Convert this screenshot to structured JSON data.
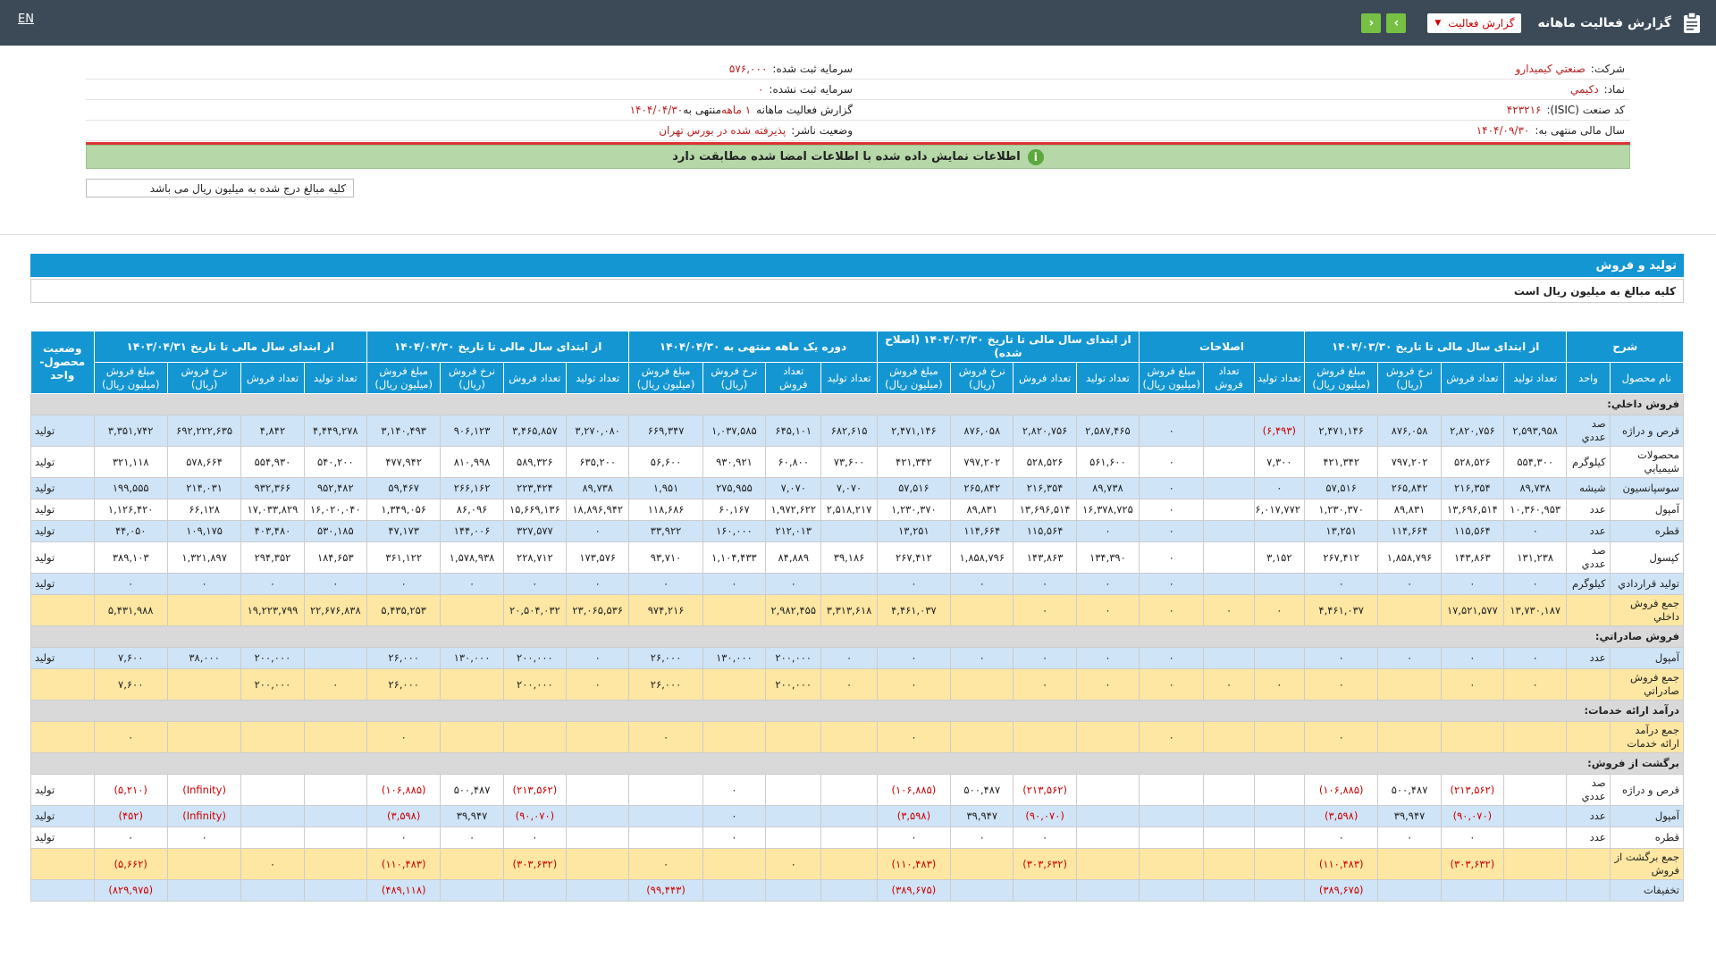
{
  "header": {
    "title": "گزارش فعالیت ماهانه",
    "report_type": "گزارش فعالیت",
    "lang": "EN",
    "next": "›",
    "prev": "‹"
  },
  "info": {
    "company_label": "شرکت:",
    "company_value": "صنعتي كيميدارو",
    "capital_label": "سرمایه ثبت شده:",
    "capital_value": "۵۷۶,۰۰۰",
    "symbol_label": "نماد:",
    "symbol_value": "دكيمي",
    "unreg_capital_label": "سرمایه ثبت نشده:",
    "unreg_capital_value": "۰",
    "isic_label": "کد صنعت (ISIC):",
    "isic_value": "۴۲۳۲۱۶",
    "period_label": "گزارش فعالیت ماهانه",
    "period_value": "۱ ماهه",
    "period_end_label": "منتهی به",
    "period_end_value": "۱۴۰۴/۰۴/۳۰",
    "fy_label": "سال مالی منتهی به:",
    "fy_value": "۱۴۰۴/۰۹/۳۰",
    "status_label": "وضعیت ناشر:",
    "status_value": "پذیرفته شده در بورس تهران",
    "ok_message": "اطلاعات نمایش داده شده با اطلاعات امضا شده مطابقت دارد",
    "unit_note": "کلیه مبالغ درج شده به میلیون ریال می باشد"
  },
  "section": {
    "title": "تولید و فروش",
    "subtitle": "کلیه مبالغ به میلیون ریال است"
  },
  "table": {
    "groups": [
      "شرح",
      "از ابتدای سال مالی تا تاریخ ۱۴۰۴/۰۳/۳۰",
      "اصلاحات",
      "از ابتدای سال مالی تا تاریخ ۱۴۰۴/۰۳/۳۰ (اصلاح شده)",
      "دوره یک ماهه منتهی به ۱۴۰۴/۰۴/۳۰",
      "از ابتدای سال مالی تا تاریخ ۱۴۰۴/۰۴/۳۰",
      "از ابتدای سال مالی تا تاریخ ۱۴۰۳/۰۴/۳۱",
      "وضعیت محصول-واحد"
    ],
    "cols": [
      "نام محصول",
      "واحد",
      "تعداد تولید",
      "تعداد فروش",
      "نرخ فروش (ریال)",
      "مبلغ فروش (میلیون ریال)",
      "تعداد تولید",
      "تعداد فروش",
      "مبلغ فروش (میلیون ریال)",
      "تعداد تولید",
      "تعداد فروش",
      "نرخ فروش (ریال)",
      "مبلغ فروش (میلیون ریال)",
      "تعداد تولید",
      "تعداد فروش",
      "نرخ فروش (ریال)",
      "مبلغ فروش (میلیون ریال)",
      "تعداد تولید",
      "تعداد فروش",
      "نرخ فروش (ریال)",
      "مبلغ فروش (میلیون ریال)",
      "تعداد تولید",
      "تعداد فروش",
      "نرخ فروش (ریال)",
      "مبلغ فروش (میلیون ریال)"
    ],
    "rows": [
      {
        "type": "sect",
        "c": [
          "فروش داخلي:"
        ]
      },
      {
        "type": "blue",
        "c": [
          "قرص و دراژه",
          "صد عددي",
          "۲,۵۹۳,۹۵۸",
          "۲,۸۲۰,۷۵۶",
          "۸۷۶,۰۵۸",
          "۲,۴۷۱,۱۴۶",
          "(۶,۴۹۳)",
          "",
          "۰",
          "۲,۵۸۷,۴۶۵",
          "۲,۸۲۰,۷۵۶",
          "۸۷۶,۰۵۸",
          "۲,۴۷۱,۱۴۶",
          "۶۸۲,۶۱۵",
          "۶۴۵,۱۰۱",
          "۱,۰۳۷,۵۸۵",
          "۶۶۹,۳۴۷",
          "۳,۲۷۰,۰۸۰",
          "۳,۴۶۵,۸۵۷",
          "۹۰۶,۱۲۳",
          "۳,۱۴۰,۴۹۳",
          "۴,۴۴۹,۲۷۸",
          "۴,۸۴۲",
          "۶۹۲,۲۲۲,۶۳۵",
          "۳,۳۵۱,۷۴۲",
          "تولید"
        ]
      },
      {
        "type": "white",
        "c": [
          "محصولات شيميايي",
          "کیلوگرم",
          "۵۵۴,۳۰۰",
          "۵۲۸,۵۲۶",
          "۷۹۷,۲۰۲",
          "۴۲۱,۳۴۲",
          "۷,۳۰۰",
          "",
          "۰",
          "۵۶۱,۶۰۰",
          "۵۲۸,۵۲۶",
          "۷۹۷,۲۰۲",
          "۴۲۱,۳۴۲",
          "۷۳,۶۰۰",
          "۶۰,۸۰۰",
          "۹۳۰,۹۲۱",
          "۵۶,۶۰۰",
          "۶۳۵,۲۰۰",
          "۵۸۹,۳۲۶",
          "۸۱۰,۹۹۸",
          "۴۷۷,۹۴۲",
          "۵۴۰,۲۰۰",
          "۵۵۴,۹۳۰",
          "۵۷۸,۶۶۴",
          "۳۲۱,۱۱۸",
          "تولید"
        ]
      },
      {
        "type": "blue",
        "c": [
          "سوسپانسيون",
          "شيشه",
          "۸۹,۷۳۸",
          "۲۱۶,۳۵۴",
          "۲۶۵,۸۴۲",
          "۵۷,۵۱۶",
          "۰",
          "",
          "۰",
          "۸۹,۷۳۸",
          "۲۱۶,۳۵۴",
          "۲۶۵,۸۴۲",
          "۵۷,۵۱۶",
          "۷,۰۷۰",
          "۷,۰۷۰",
          "۲۷۵,۹۵۵",
          "۱,۹۵۱",
          "۸۹,۷۳۸",
          "۲۲۳,۴۲۴",
          "۲۶۶,۱۶۲",
          "۵۹,۴۶۷",
          "۹۵۲,۴۸۲",
          "۹۳۲,۳۶۶",
          "۲۱۴,۰۳۱",
          "۱۹۹,۵۵۵",
          "تولید"
        ]
      },
      {
        "type": "white",
        "c": [
          "آمپول",
          "عدد",
          "۱۰,۳۶۰,۹۵۳",
          "۱۳,۶۹۶,۵۱۴",
          "۸۹,۸۳۱",
          "۱,۲۳۰,۳۷۰",
          "۶,۰۱۷,۷۷۲",
          "",
          "۰",
          "۱۶,۳۷۸,۷۲۵",
          "۱۳,۶۹۶,۵۱۴",
          "۸۹,۸۳۱",
          "۱,۲۳۰,۳۷۰",
          "۲,۵۱۸,۲۱۷",
          "۱,۹۷۲,۶۲۲",
          "۶۰,۱۶۷",
          "۱۱۸,۶۸۶",
          "۱۸,۸۹۶,۹۴۲",
          "۱۵,۶۶۹,۱۳۶",
          "۸۶,۰۹۶",
          "۱,۳۴۹,۰۵۶",
          "۱۶,۰۲۰,۰۴۰",
          "۱۷,۰۳۳,۸۲۹",
          "۶۶,۱۲۸",
          "۱,۱۲۶,۴۲۰",
          "تولید"
        ]
      },
      {
        "type": "blue",
        "c": [
          "قطره",
          "عدد",
          "۰",
          "۱۱۵,۵۶۴",
          "۱۱۴,۶۶۴",
          "۱۳,۲۵۱",
          "",
          "",
          "۰",
          "۰",
          "۱۱۵,۵۶۴",
          "۱۱۴,۶۶۴",
          "۱۳,۲۵۱",
          "",
          "۲۱۲,۰۱۳",
          "۱۶۰,۰۰۰",
          "۳۳,۹۲۲",
          "۰",
          "۳۲۷,۵۷۷",
          "۱۴۴,۰۰۶",
          "۴۷,۱۷۳",
          "۵۳۰,۱۸۵",
          "۴۰۳,۴۸۰",
          "۱۰۹,۱۷۵",
          "۴۴,۰۵۰",
          "تولید"
        ]
      },
      {
        "type": "white",
        "c": [
          "كپسول",
          "صد عددي",
          "۱۳۱,۲۳۸",
          "۱۴۳,۸۶۳",
          "۱,۸۵۸,۷۹۶",
          "۲۶۷,۴۱۲",
          "۳,۱۵۲",
          "",
          "۰",
          "۱۳۴,۳۹۰",
          "۱۴۳,۸۶۳",
          "۱,۸۵۸,۷۹۶",
          "۲۶۷,۴۱۲",
          "۳۹,۱۸۶",
          "۸۴,۸۸۹",
          "۱,۱۰۴,۴۳۳",
          "۹۳,۷۱۰",
          "۱۷۳,۵۷۶",
          "۲۲۸,۷۱۲",
          "۱,۵۷۸,۹۳۸",
          "۳۶۱,۱۲۲",
          "۱۸۴,۶۵۳",
          "۲۹۴,۳۵۲",
          "۱,۳۲۱,۸۹۷",
          "۳۸۹,۱۰۳",
          "تولید"
        ]
      },
      {
        "type": "blue",
        "c": [
          "توليد قراردادي",
          "کیلوگرم",
          "۰",
          "۰",
          "۰",
          "۰",
          "",
          "",
          "۰",
          "۰",
          "۰",
          "۰",
          "۰",
          "",
          "۰",
          "۰",
          "۰",
          "۰",
          "۰",
          "۰",
          "۰",
          "۰",
          "۰",
          "۰",
          "۰",
          "تولید"
        ]
      },
      {
        "type": "total",
        "c": [
          "جمع فروش داخلي",
          "",
          "۱۳,۷۳۰,۱۸۷",
          "۱۷,۵۲۱,۵۷۷",
          "",
          "۴,۴۶۱,۰۳۷",
          "۰",
          "۰",
          "۰",
          "۰",
          "۰",
          "",
          "۴,۴۶۱,۰۳۷",
          "۳,۳۱۳,۶۱۸",
          "۲,۹۸۲,۴۵۵",
          "",
          "۹۷۴,۲۱۶",
          "۲۳,۰۶۵,۵۳۶",
          "۲۰,۵۰۴,۰۳۲",
          "",
          "۵,۴۳۵,۲۵۳",
          "۲۲,۶۷۶,۸۳۸",
          "۱۹,۲۲۳,۷۹۹",
          "",
          "۵,۴۳۱,۹۸۸",
          ""
        ]
      },
      {
        "type": "sect",
        "c": [
          "فروش صادراتي:"
        ]
      },
      {
        "type": "blue",
        "c": [
          "آمپول",
          "عدد",
          "۰",
          "۰",
          "۰",
          "۰",
          "",
          "",
          "۰",
          "۰",
          "۰",
          "۰",
          "۰",
          "۰",
          "۲۰۰,۰۰۰",
          "۱۳۰,۰۰۰",
          "۲۶,۰۰۰",
          "۰",
          "۲۰۰,۰۰۰",
          "۱۳۰,۰۰۰",
          "۲۶,۰۰۰",
          "",
          "۲۰۰,۰۰۰",
          "۳۸,۰۰۰",
          "۷,۶۰۰",
          "تولید"
        ]
      },
      {
        "type": "total",
        "c": [
          "جمع فروش صادراتي",
          "",
          "۰",
          "۰",
          "",
          "۰",
          "۰",
          "۰",
          "۰",
          "۰",
          "۰",
          "",
          "۰",
          "۰",
          "۲۰۰,۰۰۰",
          "",
          "۲۶,۰۰۰",
          "۰",
          "۲۰۰,۰۰۰",
          "",
          "۲۶,۰۰۰",
          "۰",
          "۲۰۰,۰۰۰",
          "",
          "۷,۶۰۰",
          ""
        ]
      },
      {
        "type": "sect",
        "c": [
          "درآمد ارائه خدمات:"
        ]
      },
      {
        "type": "total",
        "c": [
          "جمع درآمد ارائه خدمات",
          "",
          "",
          "",
          "",
          "۰",
          "",
          "",
          "۰",
          "",
          "",
          "",
          "۰",
          "",
          "",
          "",
          "۰",
          "",
          "",
          "",
          "۰",
          "",
          "",
          "",
          "۰",
          ""
        ]
      },
      {
        "type": "sect",
        "c": [
          "برگشت از فروش:"
        ]
      },
      {
        "type": "white",
        "c": [
          "قرص و دراژه",
          "صد عددي",
          "",
          "(۲۱۳,۵۶۲)",
          "۵۰۰,۴۸۷",
          "(۱۰۶,۸۸۵)",
          "",
          "",
          "",
          "",
          "(۲۱۳,۵۶۲)",
          "۵۰۰,۴۸۷",
          "(۱۰۶,۸۸۵)",
          "",
          "",
          "۰",
          "",
          "",
          "(۲۱۳,۵۶۲)",
          "۵۰۰,۴۸۷",
          "(۱۰۶,۸۸۵)",
          "",
          "",
          "(Infinity)",
          "(۵,۲۱۰)",
          "تولید"
        ]
      },
      {
        "type": "blue",
        "c": [
          "آمپول",
          "عدد",
          "",
          "(۹۰,۰۷۰)",
          "۳۹,۹۴۷",
          "(۳,۵۹۸)",
          "",
          "",
          "",
          "",
          "(۹۰,۰۷۰)",
          "۳۹,۹۴۷",
          "(۳,۵۹۸)",
          "",
          "",
          "۰",
          "",
          "",
          "(۹۰,۰۷۰)",
          "۳۹,۹۴۷",
          "(۳,۵۹۸)",
          "",
          "",
          "(Infinity)",
          "(۴۵۲)",
          "تولید"
        ]
      },
      {
        "type": "white",
        "c": [
          "قطره",
          "عدد",
          "",
          "۰",
          "۰",
          "۰",
          "",
          "",
          "",
          "",
          "۰",
          "۰",
          "۰",
          "",
          "",
          "۰",
          "",
          "",
          "۰",
          "۰",
          "۰",
          "",
          "",
          "۰",
          "۰",
          "تولید"
        ]
      },
      {
        "type": "total",
        "c": [
          "جمع برگشت از فروش",
          "",
          "",
          "(۳۰۳,۶۳۲)",
          "",
          "(۱۱۰,۴۸۳)",
          "",
          "",
          "",
          "",
          "(۳۰۳,۶۳۲)",
          "",
          "(۱۱۰,۴۸۳)",
          "",
          "۰",
          "",
          "۰",
          "",
          "(۳۰۳,۶۳۲)",
          "",
          "(۱۱۰,۴۸۳)",
          "",
          "۰",
          "",
          "(۵,۶۶۲)",
          ""
        ]
      },
      {
        "type": "blue",
        "c": [
          "تخفيفات",
          "",
          "",
          "",
          "",
          "(۳۸۹,۶۷۵)",
          "",
          "",
          "",
          "",
          "",
          "",
          "(۳۸۹,۶۷۵)",
          "",
          "",
          "",
          "(۹۹,۴۴۳)",
          "",
          "",
          "",
          "(۴۸۹,۱۱۸)",
          "",
          "",
          "",
          "(۸۲۹,۹۷۵)",
          ""
        ]
      }
    ]
  }
}
